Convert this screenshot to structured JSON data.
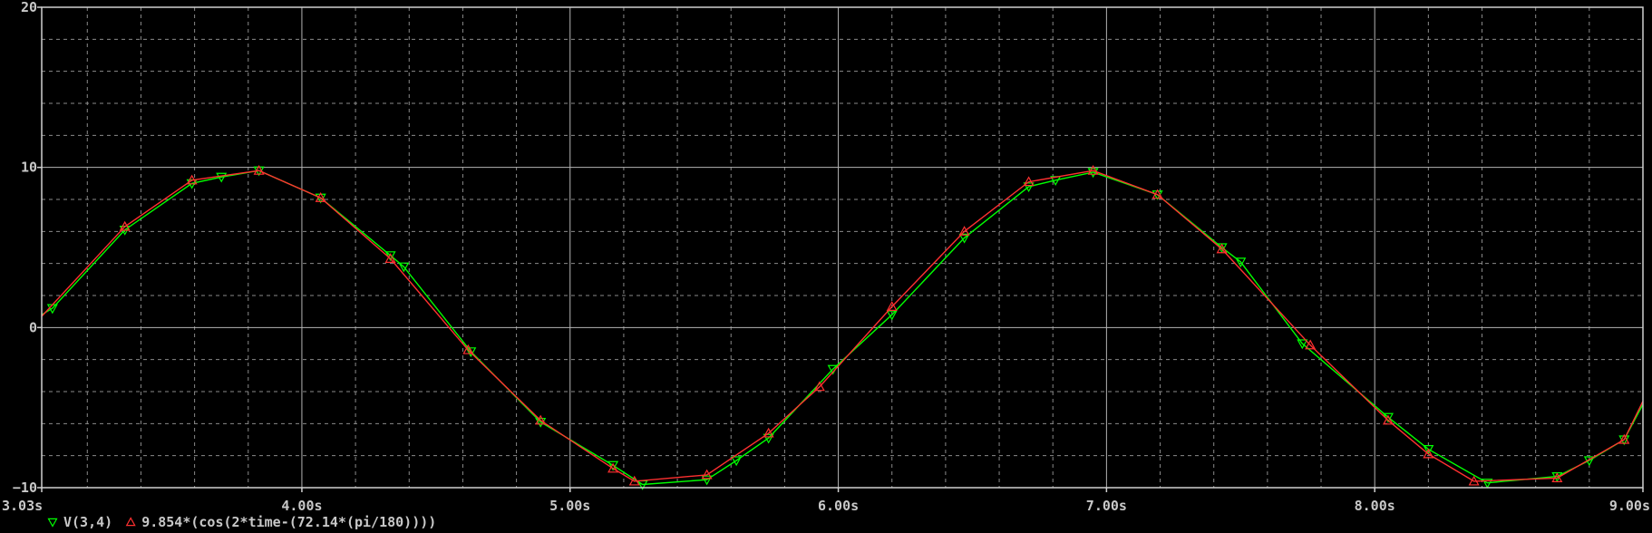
{
  "chart_data": {
    "type": "line",
    "xlabel": "",
    "ylabel": "",
    "xlim": [
      3.03,
      9.0
    ],
    "ylim": [
      -10,
      20
    ],
    "x_ticks": [
      {
        "value": 3.03,
        "label": "3.03s"
      },
      {
        "value": 4.0,
        "label": "4.00s"
      },
      {
        "value": 5.0,
        "label": "5.00s"
      },
      {
        "value": 6.0,
        "label": "6.00s"
      },
      {
        "value": 7.0,
        "label": "7.00s"
      },
      {
        "value": 8.0,
        "label": "8.00s"
      },
      {
        "value": 9.0,
        "label": "9.00s"
      }
    ],
    "y_ticks": [
      {
        "value": 20,
        "label": "20"
      },
      {
        "value": 10,
        "label": "10"
      },
      {
        "value": 0,
        "label": "0"
      },
      {
        "value": -10,
        "label": "−10"
      }
    ],
    "grid": true,
    "legend_position": "bottom-left",
    "series": [
      {
        "name": "V(3,4)",
        "color": "#00ff00",
        "marker": "triangle-down",
        "x": [
          3.03,
          3.07,
          3.34,
          3.59,
          3.7,
          3.84,
          4.07,
          4.33,
          4.38,
          4.63,
          4.89,
          5.16,
          5.27,
          5.51,
          5.62,
          5.74,
          5.98,
          6.2,
          6.47,
          6.71,
          6.81,
          6.95,
          7.19,
          7.43,
          7.5,
          7.73,
          8.05,
          8.2,
          8.42,
          8.68,
          8.8,
          8.93,
          9.0
        ],
        "y": [
          0.8,
          1.2,
          6.1,
          9.0,
          9.4,
          9.8,
          8.1,
          4.5,
          3.8,
          -1.5,
          -5.9,
          -8.6,
          -9.8,
          -9.5,
          -8.3,
          -6.9,
          -2.6,
          0.8,
          5.6,
          8.8,
          9.2,
          9.7,
          8.3,
          5.0,
          4.1,
          -1.0,
          -5.6,
          -7.6,
          -9.7,
          -9.3,
          -8.3,
          -7.0,
          -4.8
        ]
      },
      {
        "name": "9.854*(cos(2*time-(72.14*(pi/180))))",
        "color": "#ff3030",
        "marker": "triangle-up",
        "x": [
          3.03,
          3.34,
          3.59,
          3.84,
          4.07,
          4.33,
          4.62,
          4.89,
          5.16,
          5.24,
          5.51,
          5.74,
          5.93,
          6.2,
          6.47,
          6.71,
          6.95,
          7.19,
          7.43,
          7.76,
          8.05,
          8.2,
          8.37,
          8.68,
          8.93,
          9.0
        ],
        "y": [
          0.7,
          6.3,
          9.2,
          9.8,
          8.1,
          4.3,
          -1.4,
          -5.8,
          -8.8,
          -9.6,
          -9.2,
          -6.6,
          -3.7,
          1.3,
          6.0,
          9.1,
          9.8,
          8.3,
          4.9,
          -1.1,
          -5.8,
          -7.9,
          -9.6,
          -9.4,
          -7.0,
          -4.6
        ]
      }
    ]
  }
}
